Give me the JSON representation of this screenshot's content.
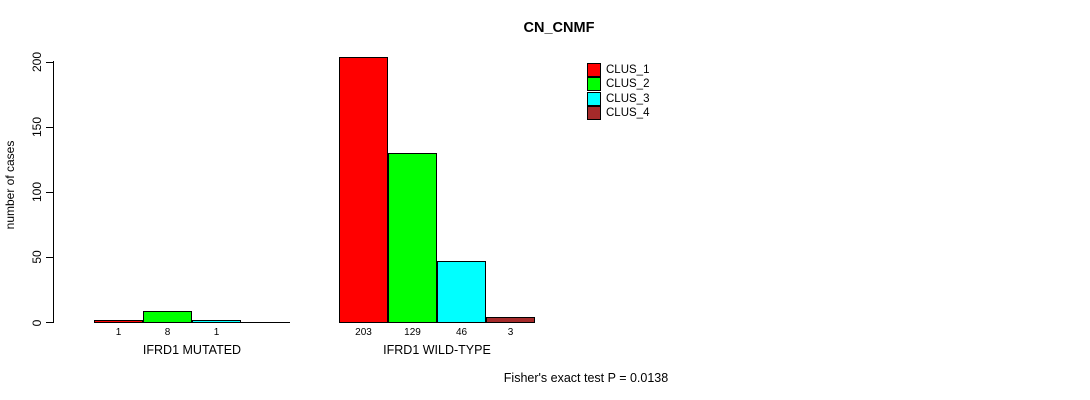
{
  "chart_data": {
    "type": "bar",
    "title": "CN_CNMF",
    "ylabel": "number of cases",
    "xlabel": "",
    "ylim": [
      0,
      200
    ],
    "yticks": [
      0,
      50,
      100,
      150,
      200
    ],
    "grid": false,
    "legend_position": "top-right",
    "series_colors": [
      "#FF0000",
      "#00FF00",
      "#00FFFF",
      "#A52A2A"
    ],
    "legend": [
      {
        "name": "CLUS_1",
        "color": "#FF0000"
      },
      {
        "name": "CLUS_2",
        "color": "#00FF00"
      },
      {
        "name": "CLUS_3",
        "color": "#00FFFF"
      },
      {
        "name": "CLUS_4",
        "color": "#A52A2A"
      }
    ],
    "groups": [
      {
        "label": "IFRD1 MUTATED",
        "values": [
          1,
          8,
          1,
          0
        ],
        "value_labels": [
          "1",
          "8",
          "1",
          ""
        ]
      },
      {
        "label": "IFRD1 WILD-TYPE",
        "values": [
          203,
          129,
          46,
          3
        ],
        "value_labels": [
          "203",
          "129",
          "46",
          "3"
        ]
      }
    ],
    "annotation": "Fisher's exact test P = 0.0138"
  }
}
